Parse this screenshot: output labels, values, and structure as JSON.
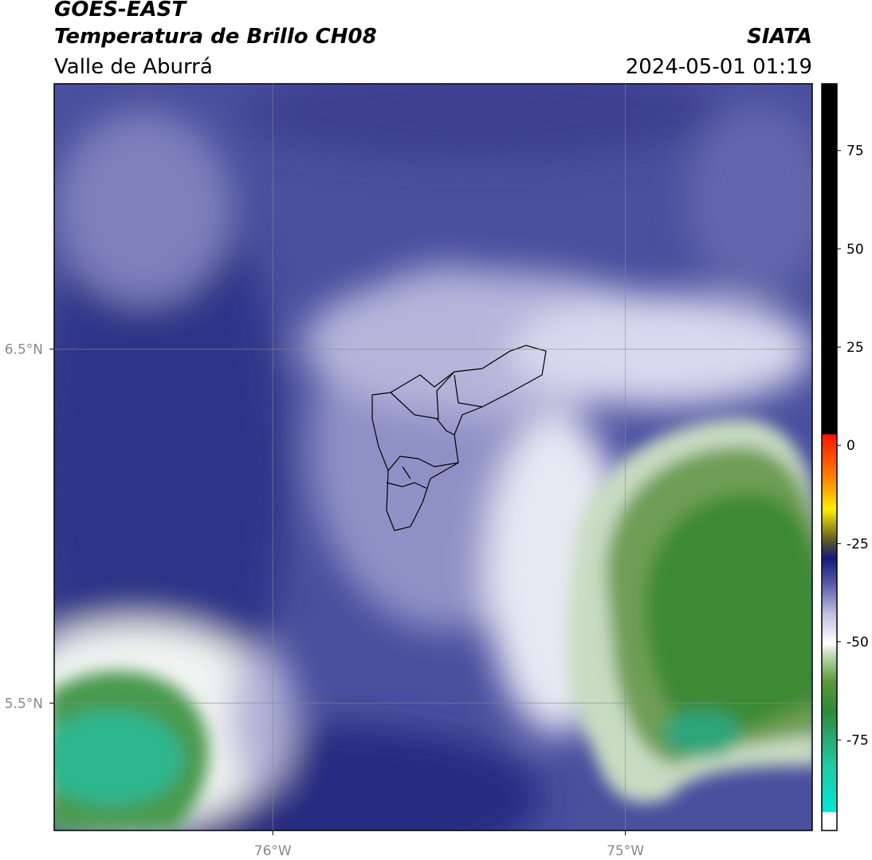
{
  "chart_data": {
    "type": "map",
    "title": "GOES-EAST",
    "subtitle": "Temperatura de Brillo CH08",
    "region": "Valle de Aburrá",
    "source": "SIATA",
    "datetime": "2024-05-01 01:19",
    "xlim": [
      -76.62,
      -74.47
    ],
    "ylim": [
      5.14,
      7.25
    ],
    "xticks": [
      {
        "value": -76,
        "label": "76°W"
      },
      {
        "value": -75,
        "label": "75°W"
      }
    ],
    "yticks": [
      {
        "value": 6.5,
        "label": "6.5°N"
      },
      {
        "value": 5.5,
        "label": "5.5°N"
      }
    ],
    "grid": true,
    "colorbar": {
      "lim": [
        -98,
        92
      ],
      "ticks": [
        75,
        50,
        25,
        0,
        -25,
        -50,
        -75
      ]
    }
  }
}
